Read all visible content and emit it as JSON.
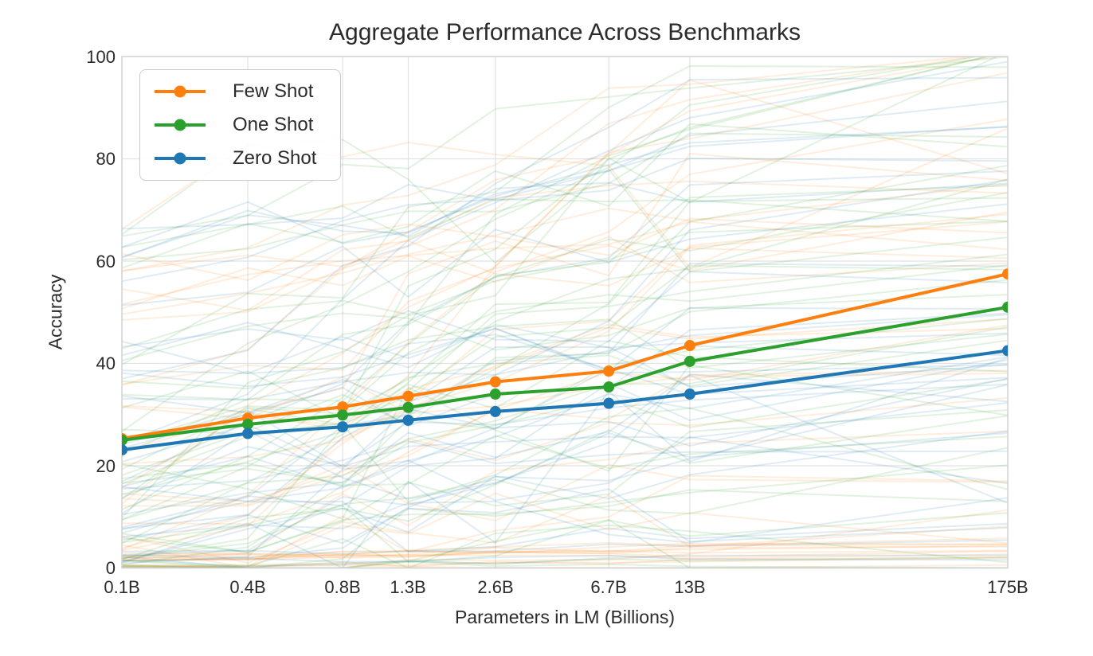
{
  "chart_data": {
    "type": "line",
    "title": "Aggregate Performance Across Benchmarks",
    "xlabel": "Parameters in LM (Billions)",
    "ylabel": "Accuracy",
    "x_scale": "log",
    "x_tick_labels": [
      "0.1B",
      "0.4B",
      "0.8B",
      "1.3B",
      "2.6B",
      "6.7B",
      "13B",
      "175B"
    ],
    "x_values": [
      0.125,
      0.35,
      0.76,
      1.3,
      2.65,
      6.7,
      13,
      175
    ],
    "y_tick_labels": [
      "0",
      "20",
      "40",
      "60",
      "80",
      "100"
    ],
    "y_ticks": [
      0,
      20,
      40,
      60,
      80,
      100
    ],
    "ylim": [
      0,
      100
    ],
    "grid": true,
    "legend_position": "upper left",
    "series": [
      {
        "name": "Few Shot",
        "color": "#ff7f0e",
        "values": [
          25.3,
          29.3,
          31.5,
          33.6,
          36.4,
          38.5,
          43.5,
          57.5
        ]
      },
      {
        "name": "One Shot",
        "color": "#2ca02c",
        "values": [
          25.0,
          28.1,
          29.9,
          31.4,
          34.0,
          35.4,
          40.4,
          51.0
        ]
      },
      {
        "name": "Zero Shot",
        "color": "#1f77b4",
        "values": [
          23.1,
          26.3,
          27.6,
          28.9,
          30.6,
          32.2,
          34.0,
          42.5
        ]
      }
    ],
    "background_series": {
      "description": "faint individual-benchmark curves, one per benchmark per shot setting",
      "count_per_color": 40,
      "opacity": 0.14,
      "stroke_width": 2,
      "seed": 1337
    },
    "colors": {
      "few_shot": "#ff7f0e",
      "one_shot": "#2ca02c",
      "zero_shot": "#1f77b4",
      "grid": "#e2e2e2",
      "spine": "#d4d4d4",
      "text": "#2b2b2b"
    }
  }
}
